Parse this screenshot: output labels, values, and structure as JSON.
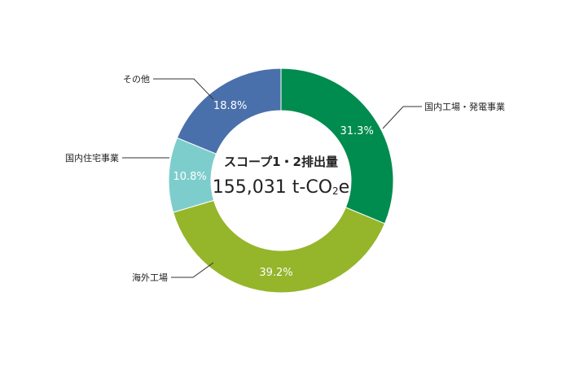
{
  "chart_data": {
    "type": "pie",
    "donut": true,
    "categories": [
      "国内工場・発電事業",
      "海外工場",
      "国内住宅事業",
      "その他"
    ],
    "values": [
      31.3,
      39.2,
      10.8,
      18.8
    ],
    "value_labels": [
      "31.3%",
      "39.2%",
      "10.8%",
      "18.8%"
    ],
    "colors": [
      "#008c4e",
      "#95b52b",
      "#7ecdcd",
      "#4a70ab"
    ],
    "center_title": "スコープ1・2排出量",
    "center_total_prefix": "155,031 t-CO",
    "center_total_sub": "2",
    "center_total_suffix": "e"
  }
}
